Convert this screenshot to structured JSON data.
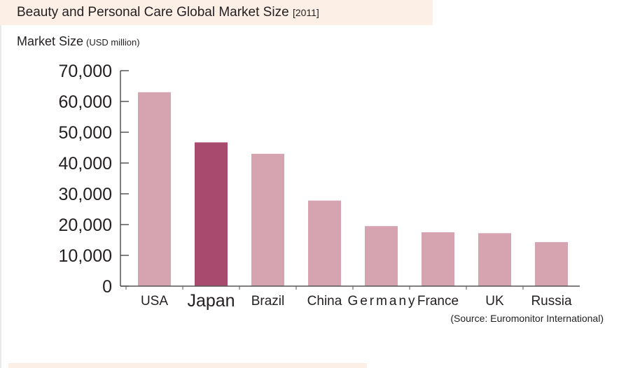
{
  "title": "Beauty and Personal Care Global Market Size",
  "title_year": "[2011]",
  "colors": {
    "bar": "#d6a3b0",
    "bar_highlight": "#a84a6e",
    "title_band": "#fcefe6",
    "axis": "#555555"
  },
  "chart_data": {
    "type": "bar",
    "title": "Beauty and Personal Care Global Market Size [2011]",
    "ylabel": "Market Size",
    "ylabel_unit": "(USD million)",
    "xlabel": "",
    "categories": [
      "USA",
      "Japan",
      "Brazil",
      "China",
      "Germany",
      "France",
      "UK",
      "Russia"
    ],
    "values": [
      63000,
      46700,
      43000,
      27800,
      19500,
      17500,
      17200,
      14300
    ],
    "highlight_category": "Japan",
    "ylim": [
      0,
      70000
    ],
    "yticks": [
      0,
      10000,
      20000,
      30000,
      40000,
      50000,
      60000,
      70000
    ],
    "ytick_labels": [
      "0",
      "10,000",
      "20,000",
      "30,000",
      "40,000",
      "50,000",
      "60,000",
      "70,000"
    ],
    "grid": false,
    "legend": "none",
    "source": "(Source: Euromonitor International)"
  }
}
